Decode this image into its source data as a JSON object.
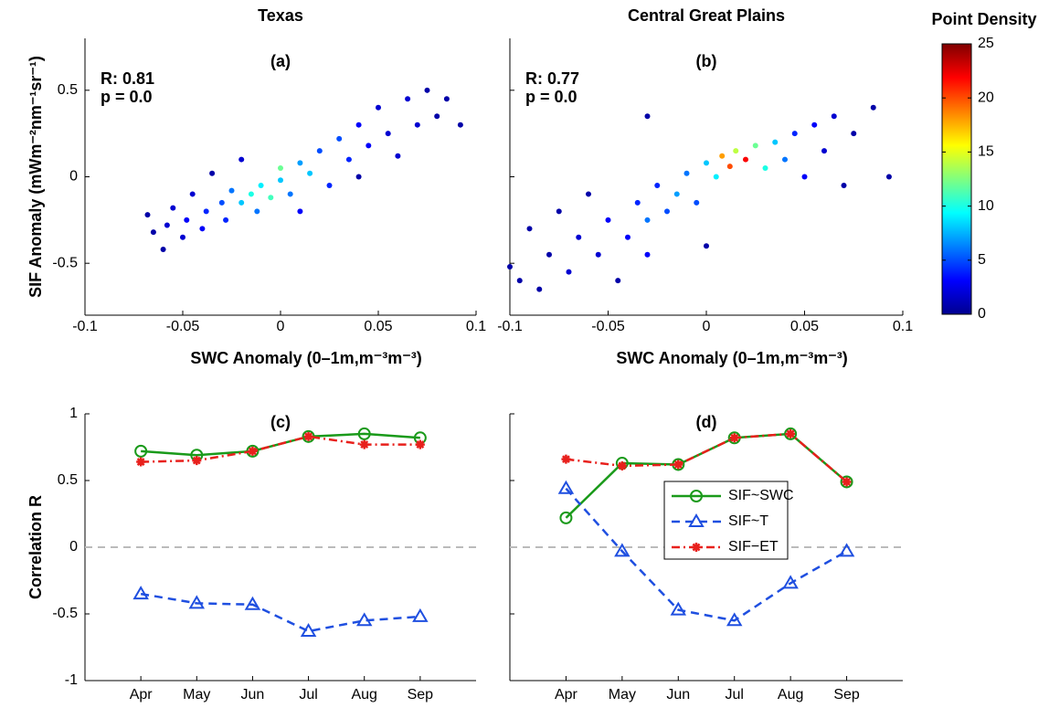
{
  "chart_data": [
    {
      "type": "scatter",
      "title": "Texas",
      "panel_label": "(a)",
      "annotations": [
        "R: 0.81",
        "p = 0.0"
      ],
      "x_label": "SWC Anomaly (0–1m,m⁻³m⁻³)",
      "y_label": "SIF Anomaly (mWm⁻²nm⁻¹sr⁻¹)",
      "xlim": [
        -0.1,
        0.1
      ],
      "xticks": [
        -0.1,
        -0.05,
        0,
        0.05,
        0.1
      ],
      "ylim": [
        -0.8,
        0.8
      ],
      "yticks": [
        -0.5,
        0,
        0.5
      ],
      "x": [
        -0.068,
        -0.065,
        -0.06,
        -0.058,
        -0.055,
        -0.05,
        -0.048,
        -0.045,
        -0.04,
        -0.038,
        -0.035,
        -0.03,
        -0.028,
        -0.025,
        -0.02,
        -0.015,
        -0.012,
        -0.01,
        -0.005,
        0,
        0,
        0.005,
        0.01,
        0.015,
        0.02,
        0.025,
        0.03,
        0.035,
        0.04,
        0.045,
        0.05,
        0.055,
        0.06,
        0.065,
        0.07,
        0.075,
        0.08,
        0.085,
        0.092,
        0.01,
        -0.02,
        0.04
      ],
      "y": [
        -0.22,
        -0.32,
        -0.42,
        -0.28,
        -0.18,
        -0.35,
        -0.25,
        -0.1,
        -0.3,
        -0.2,
        0.02,
        -0.15,
        -0.25,
        -0.08,
        -0.15,
        -0.1,
        -0.2,
        -0.05,
        -0.12,
        -0.02,
        0.05,
        -0.1,
        0.08,
        0.02,
        0.15,
        -0.05,
        0.22,
        0.1,
        0.3,
        0.18,
        0.4,
        0.25,
        0.12,
        0.45,
        0.3,
        0.5,
        0.35,
        0.45,
        0.3,
        -0.2,
        0.1,
        0.0
      ],
      "density": [
        1,
        1,
        1,
        2,
        2,
        2,
        3,
        2,
        3,
        4,
        1,
        5,
        4,
        6,
        8,
        10,
        6,
        9,
        11,
        8,
        12,
        6,
        7,
        8,
        5,
        4,
        5,
        4,
        3,
        3,
        2,
        2,
        2,
        2,
        2,
        1,
        1,
        1,
        1,
        3,
        2,
        1
      ]
    },
    {
      "type": "scatter",
      "title": "Central Great Plains",
      "panel_label": "(b)",
      "annotations": [
        "R: 0.77",
        "p = 0.0"
      ],
      "x_label": "SWC Anomaly (0–1m,m⁻³m⁻³)",
      "show_ytick_labels": false,
      "xlim": [
        -0.1,
        0.1
      ],
      "xticks": [
        -0.1,
        -0.05,
        0,
        0.05,
        0.1
      ],
      "ylim": [
        -0.8,
        0.8
      ],
      "yticks": [
        -0.5,
        0,
        0.5
      ],
      "x": [
        -0.1,
        -0.095,
        -0.09,
        -0.085,
        -0.08,
        -0.075,
        -0.07,
        -0.065,
        -0.06,
        -0.055,
        -0.05,
        -0.045,
        -0.04,
        -0.035,
        -0.03,
        -0.03,
        -0.025,
        -0.02,
        -0.015,
        -0.01,
        -0.005,
        0,
        0.005,
        0.008,
        0.012,
        0.015,
        0.02,
        0.025,
        0.03,
        0.035,
        0.04,
        0.045,
        0.05,
        0.055,
        0.06,
        0.065,
        0.07,
        0.075,
        0.085,
        0.093,
        -0.03,
        0.0
      ],
      "y": [
        -0.52,
        -0.6,
        -0.3,
        -0.65,
        -0.45,
        -0.2,
        -0.55,
        -0.35,
        -0.1,
        -0.45,
        -0.25,
        -0.6,
        -0.35,
        -0.15,
        -0.25,
        -0.45,
        -0.05,
        -0.2,
        -0.1,
        0.02,
        -0.15,
        0.08,
        0.0,
        0.12,
        0.06,
        0.15,
        0.1,
        0.18,
        0.05,
        0.2,
        0.1,
        0.25,
        0.0,
        0.3,
        0.15,
        0.35,
        -0.05,
        0.25,
        0.4,
        0.0,
        0.35,
        -0.4
      ],
      "density": [
        1,
        1,
        1,
        1,
        1,
        1,
        2,
        2,
        1,
        2,
        3,
        1,
        3,
        4,
        6,
        3,
        4,
        5,
        7,
        6,
        5,
        8,
        9,
        18,
        20,
        14,
        22,
        12,
        10,
        8,
        6,
        4,
        3,
        3,
        2,
        2,
        1,
        1,
        1,
        1,
        1,
        1
      ]
    },
    {
      "type": "line",
      "panel_label": "(c)",
      "y_label": "Correlation R",
      "zeroline": true,
      "categories": [
        "Apr",
        "May",
        "Jun",
        "Jul",
        "Aug",
        "Sep"
      ],
      "ylim": [
        -1,
        1
      ],
      "yticks": [
        -1,
        -0.5,
        0,
        0.5,
        1
      ],
      "series": [
        {
          "color": "#1a9a1a",
          "marker": "circle",
          "linestyle": "solid",
          "values": [
            0.72,
            0.69,
            0.72,
            0.83,
            0.85,
            0.82
          ]
        },
        {
          "color": "#1f4fe0",
          "marker": "triangle",
          "linestyle": "dashed",
          "values": [
            -0.35,
            -0.42,
            -0.43,
            -0.63,
            -0.55,
            -0.52
          ]
        },
        {
          "color": "#e8201c",
          "marker": "asterisk",
          "linestyle": "dashdot",
          "values": [
            0.64,
            0.65,
            0.72,
            0.83,
            0.77,
            0.77
          ]
        }
      ]
    },
    {
      "type": "line",
      "panel_label": "(d)",
      "zeroline": true,
      "show_ytick_labels": false,
      "legend": "center-right",
      "categories": [
        "Apr",
        "May",
        "Jun",
        "Jul",
        "Aug",
        "Sep"
      ],
      "ylim": [
        -1,
        1
      ],
      "yticks": [
        -1,
        -0.5,
        0,
        0.5,
        1
      ],
      "series": [
        {
          "name": "SIF~SWC",
          "color": "#1a9a1a",
          "marker": "circle",
          "linestyle": "solid",
          "values": [
            0.22,
            0.63,
            0.62,
            0.82,
            0.85,
            0.49
          ]
        },
        {
          "name": "SIF~T",
          "color": "#1f4fe0",
          "marker": "triangle",
          "linestyle": "dashed",
          "values": [
            0.44,
            -0.03,
            -0.47,
            -0.55,
            -0.27,
            -0.03
          ]
        },
        {
          "name": "SIF−ET",
          "color": "#e8201c",
          "marker": "asterisk",
          "linestyle": "dashdot",
          "values": [
            0.66,
            0.61,
            0.62,
            0.82,
            0.85,
            0.49
          ]
        }
      ]
    }
  ],
  "colorbar": {
    "title": "Point Density",
    "lim": [
      0,
      25
    ],
    "ticks": [
      0,
      5,
      10,
      15,
      20,
      25
    ]
  }
}
